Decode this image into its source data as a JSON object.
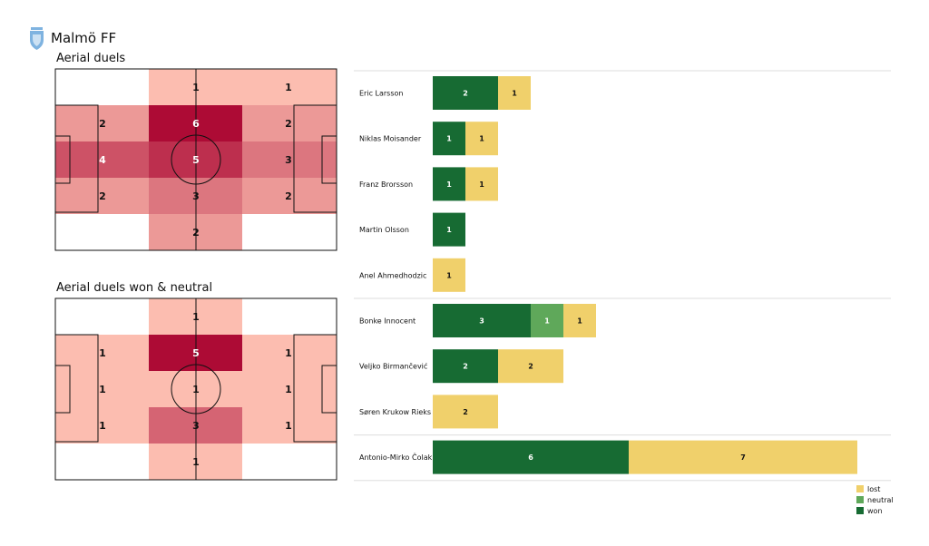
{
  "header": {
    "team_name": "Malmö FF",
    "logo_icon": "malmo-ff-crest-icon",
    "logo_color": "#7fb3e0"
  },
  "colors": {
    "won": "#176b33",
    "neutral": "#5fa85a",
    "lost": "#f0d06b",
    "heat_low": "#fcbdb0",
    "heat_high": "#ad0b35"
  },
  "chart_data": [
    {
      "type": "heatmap",
      "title": "Aerial duels",
      "grid": [
        [
          null,
          1,
          1
        ],
        [
          2,
          6,
          2
        ],
        [
          4,
          5,
          3
        ],
        [
          2,
          3,
          2
        ],
        [
          null,
          2,
          null
        ]
      ]
    },
    {
      "type": "heatmap",
      "title": "Aerial duels won & neutral",
      "grid": [
        [
          null,
          1,
          null
        ],
        [
          1,
          5,
          1
        ],
        [
          1,
          1,
          1
        ],
        [
          1,
          3,
          1
        ],
        [
          null,
          1,
          null
        ]
      ]
    },
    {
      "type": "bar",
      "orientation": "horizontal",
      "stacked": true,
      "categories": [
        "Eric Larsson",
        "Niklas Moisander",
        "Franz Brorsson",
        "Martin Olsson",
        "Anel Ahmedhodzic",
        "Bonke Innocent",
        "Veljko Birmančević",
        "Søren  Krukow Rieks",
        "Antonio-Mirko Čolak"
      ],
      "series": [
        {
          "name": "won",
          "values": [
            2,
            1,
            1,
            1,
            0,
            3,
            2,
            0,
            6
          ]
        },
        {
          "name": "neutral",
          "values": [
            0,
            0,
            0,
            0,
            0,
            1,
            0,
            0,
            0
          ]
        },
        {
          "name": "lost",
          "values": [
            1,
            1,
            1,
            0,
            1,
            1,
            2,
            2,
            7
          ]
        }
      ],
      "legend": [
        "lost",
        "neutral",
        "won"
      ],
      "legend_position": "bottom-right",
      "grid": false
    }
  ]
}
